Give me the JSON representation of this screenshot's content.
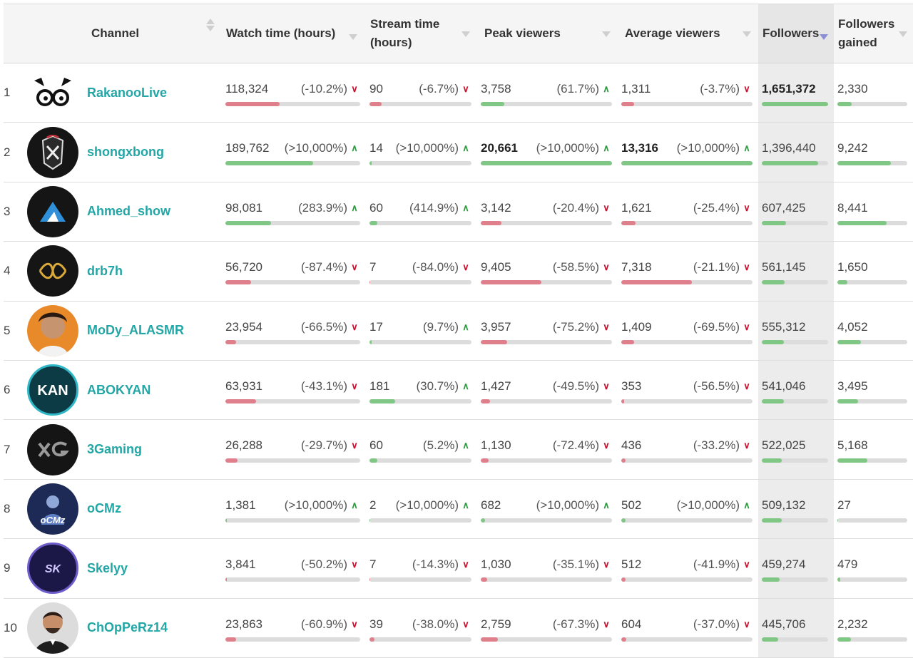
{
  "header": {
    "channel": "Channel",
    "watch_time": "Watch time (hours)",
    "stream_time_1": "Stream time",
    "stream_time_2": "(hours)",
    "peak_viewers": "Peak viewers",
    "average_viewers": "Average viewers",
    "followers": "Followers",
    "followers_gained_1": "Followers",
    "followers_gained_2": "gained"
  },
  "colors": {
    "link": "#23a6a6",
    "up": "#2a9a3c",
    "down": "#c8102e",
    "bar_green": "#80c684",
    "bar_red": "#e07f8c"
  },
  "rows": [
    {
      "rank": "1",
      "name": "RakanooLive",
      "avatar": "panda-logo",
      "watch": {
        "v": "118,324",
        "p": "(-10.2%)",
        "dir": "down",
        "bar": 0.4
      },
      "stream": {
        "v": "90",
        "p": "(-6.7%)",
        "dir": "down",
        "bar": 0.12
      },
      "peak": {
        "v": "3,758",
        "p": "(61.7%)",
        "dir": "up",
        "bar": 0.18
      },
      "avg": {
        "v": "1,311",
        "p": "(-3.7%)",
        "dir": "down",
        "bar": 0.1
      },
      "followers": {
        "v": "1,651,372",
        "bold": true,
        "bar": 1.0
      },
      "gained": {
        "v": "2,330",
        "bar": 0.2
      }
    },
    {
      "rank": "2",
      "name": "shongxbong",
      "avatar": "crest-logo",
      "watch": {
        "v": "189,762",
        "p": "(>10,000%)",
        "dir": "up",
        "bar": 0.65,
        "bold": false
      },
      "stream": {
        "v": "14",
        "p": "(>10,000%)",
        "dir": "up",
        "bar": 0.02
      },
      "peak": {
        "v": "20,661",
        "p": "(>10,000%)",
        "dir": "up",
        "bar": 1.0,
        "bold": true
      },
      "avg": {
        "v": "13,316",
        "p": "(>10,000%)",
        "dir": "up",
        "bar": 1.0,
        "bold": true
      },
      "followers": {
        "v": "1,396,440",
        "bar": 0.85
      },
      "gained": {
        "v": "9,242",
        "bar": 0.77
      }
    },
    {
      "rank": "3",
      "name": "Ahmed_show",
      "avatar": "mountain-logo",
      "watch": {
        "v": "98,081",
        "p": "(283.9%)",
        "dir": "up",
        "bar": 0.34
      },
      "stream": {
        "v": "60",
        "p": "(414.9%)",
        "dir": "up",
        "bar": 0.08
      },
      "peak": {
        "v": "3,142",
        "p": "(-20.4%)",
        "dir": "down",
        "bar": 0.16
      },
      "avg": {
        "v": "1,621",
        "p": "(-25.4%)",
        "dir": "down",
        "bar": 0.11
      },
      "followers": {
        "v": "607,425",
        "bar": 0.37
      },
      "gained": {
        "v": "8,441",
        "bar": 0.7
      }
    },
    {
      "rank": "4",
      "name": "drb7h",
      "avatar": "knot-logo",
      "watch": {
        "v": "56,720",
        "p": "(-87.4%)",
        "dir": "down",
        "bar": 0.19
      },
      "stream": {
        "v": "7",
        "p": "(-84.0%)",
        "dir": "down",
        "bar": 0.01
      },
      "peak": {
        "v": "9,405",
        "p": "(-58.5%)",
        "dir": "down",
        "bar": 0.46
      },
      "avg": {
        "v": "7,318",
        "p": "(-21.1%)",
        "dir": "down",
        "bar": 0.54
      },
      "followers": {
        "v": "561,145",
        "bar": 0.34
      },
      "gained": {
        "v": "1,650",
        "bar": 0.14
      }
    },
    {
      "rank": "5",
      "name": "MoDy_ALASMR",
      "avatar": "person-photo",
      "watch": {
        "v": "23,954",
        "p": "(-66.5%)",
        "dir": "down",
        "bar": 0.08
      },
      "stream": {
        "v": "17",
        "p": "(9.7%)",
        "dir": "up",
        "bar": 0.02
      },
      "peak": {
        "v": "3,957",
        "p": "(-75.2%)",
        "dir": "down",
        "bar": 0.2
      },
      "avg": {
        "v": "1,409",
        "p": "(-69.5%)",
        "dir": "down",
        "bar": 0.1
      },
      "followers": {
        "v": "555,312",
        "bar": 0.33
      },
      "gained": {
        "v": "4,052",
        "bar": 0.34
      }
    },
    {
      "rank": "6",
      "name": "ABOKYAN",
      "avatar": "kan-logo",
      "watch": {
        "v": "63,931",
        "p": "(-43.1%)",
        "dir": "down",
        "bar": 0.23
      },
      "stream": {
        "v": "181",
        "p": "(30.7%)",
        "dir": "up",
        "bar": 0.25
      },
      "peak": {
        "v": "1,427",
        "p": "(-49.5%)",
        "dir": "down",
        "bar": 0.07
      },
      "avg": {
        "v": "353",
        "p": "(-56.5%)",
        "dir": "down",
        "bar": 0.02
      },
      "followers": {
        "v": "541,046",
        "bar": 0.33
      },
      "gained": {
        "v": "3,495",
        "bar": 0.3
      }
    },
    {
      "rank": "7",
      "name": "3Gaming",
      "avatar": "xg-logo",
      "watch": {
        "v": "26,288",
        "p": "(-29.7%)",
        "dir": "down",
        "bar": 0.09
      },
      "stream": {
        "v": "60",
        "p": "(5.2%)",
        "dir": "up",
        "bar": 0.08
      },
      "peak": {
        "v": "1,130",
        "p": "(-72.4%)",
        "dir": "down",
        "bar": 0.06
      },
      "avg": {
        "v": "436",
        "p": "(-33.2%)",
        "dir": "down",
        "bar": 0.03
      },
      "followers": {
        "v": "522,025",
        "bar": 0.3
      },
      "gained": {
        "v": "5,168",
        "bar": 0.43
      }
    },
    {
      "rank": "8",
      "name": "oCMz",
      "avatar": "ocmz-logo",
      "watch": {
        "v": "1,381",
        "p": "(>10,000%)",
        "dir": "up",
        "bar": 0.01
      },
      "stream": {
        "v": "2",
        "p": "(>10,000%)",
        "dir": "up",
        "bar": 0.01
      },
      "peak": {
        "v": "682",
        "p": "(>10,000%)",
        "dir": "up",
        "bar": 0.03
      },
      "avg": {
        "v": "502",
        "p": "(>10,000%)",
        "dir": "up",
        "bar": 0.03
      },
      "followers": {
        "v": "509,132",
        "bar": 0.3
      },
      "gained": {
        "v": "27",
        "bar": 0.01
      }
    },
    {
      "rank": "9",
      "name": "Skelyy",
      "avatar": "skelyy-logo",
      "watch": {
        "v": "3,841",
        "p": "(-50.2%)",
        "dir": "down",
        "bar": 0.01
      },
      "stream": {
        "v": "7",
        "p": "(-14.3%)",
        "dir": "down",
        "bar": 0.01
      },
      "peak": {
        "v": "1,030",
        "p": "(-35.1%)",
        "dir": "down",
        "bar": 0.05
      },
      "avg": {
        "v": "512",
        "p": "(-41.9%)",
        "dir": "down",
        "bar": 0.03
      },
      "followers": {
        "v": "459,274",
        "bar": 0.27
      },
      "gained": {
        "v": "479",
        "bar": 0.04
      }
    },
    {
      "rank": "10",
      "name": "ChOpPeRz14",
      "avatar": "person-photo-2",
      "watch": {
        "v": "23,863",
        "p": "(-60.9%)",
        "dir": "down",
        "bar": 0.08
      },
      "stream": {
        "v": "39",
        "p": "(-38.0%)",
        "dir": "down",
        "bar": 0.05
      },
      "peak": {
        "v": "2,759",
        "p": "(-67.3%)",
        "dir": "down",
        "bar": 0.13
      },
      "avg": {
        "v": "604",
        "p": "(-37.0%)",
        "dir": "down",
        "bar": 0.04
      },
      "followers": {
        "v": "445,706",
        "bar": 0.25
      },
      "gained": {
        "v": "2,232",
        "bar": 0.19
      }
    }
  ]
}
